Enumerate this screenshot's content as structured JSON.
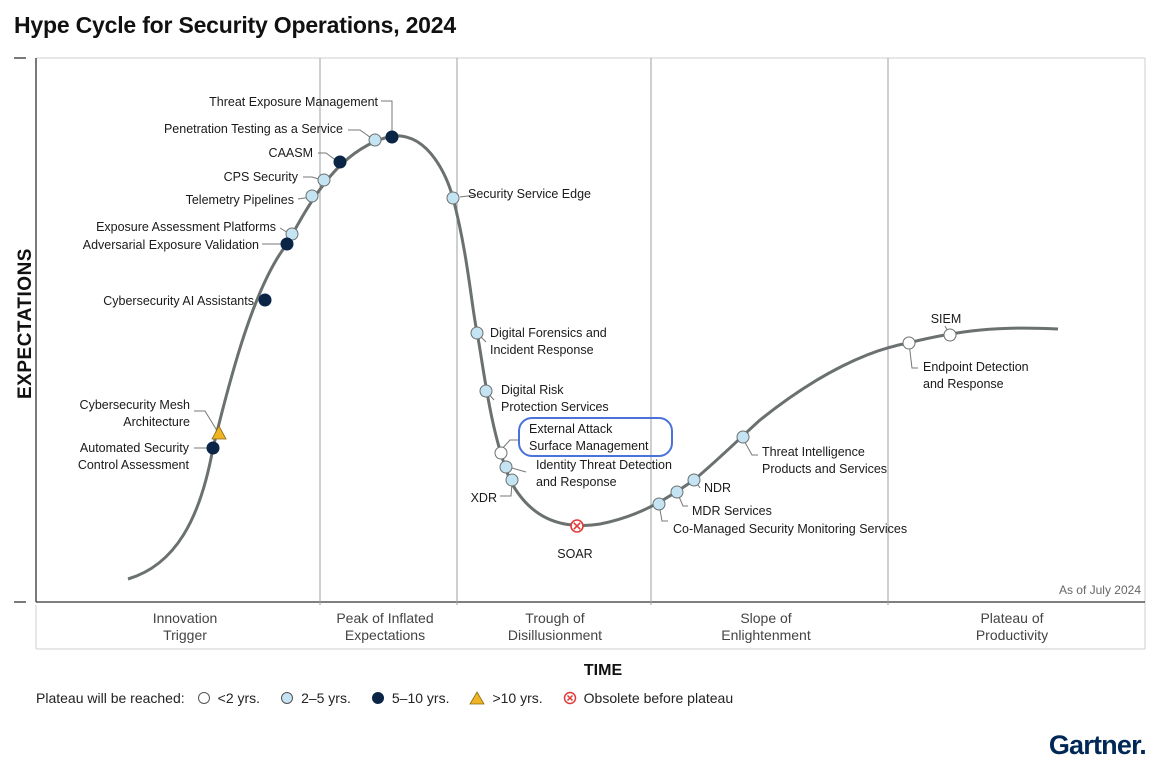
{
  "title": "Hype Cycle for Security Operations, 2024",
  "chart_data": {
    "type": "scatter",
    "title": "Hype Cycle for Security Operations, 2024",
    "ylabel": "EXPECTATIONS",
    "xlabel": "TIME",
    "as_of": "As of July 2024",
    "phases": [
      "Innovation Trigger",
      "Peak of Inflated Expectations",
      "Trough of Disillusionment",
      "Slope of Enlightenment",
      "Plateau of Productivity"
    ],
    "colors": {
      "lt2": "#ffffff",
      "y2to5": "#c5e4f3",
      "y5to10": "#0b2546",
      "gt10": "#f0b323",
      "obsolete": "#e03a3a",
      "curve": "#6b7070",
      "highlight": "#4a72d8"
    },
    "points": [
      {
        "name": "Threat Exposure Management",
        "cat": "y5to10",
        "phase": "Peak of Inflated Expectations"
      },
      {
        "name": "Penetration Testing as a Service",
        "cat": "y2to5",
        "phase": "Peak of Inflated Expectations"
      },
      {
        "name": "CAASM",
        "cat": "y5to10",
        "phase": "Peak of Inflated Expectations"
      },
      {
        "name": "CPS Security",
        "cat": "y2to5",
        "phase": "Peak of Inflated Expectations"
      },
      {
        "name": "Telemetry Pipelines",
        "cat": "y2to5",
        "phase": "Innovation Trigger"
      },
      {
        "name": "Exposure Assessment Platforms",
        "cat": "y2to5",
        "phase": "Innovation Trigger"
      },
      {
        "name": "Adversarial Exposure Validation",
        "cat": "y5to10",
        "phase": "Innovation Trigger"
      },
      {
        "name": "Cybersecurity AI Assistants",
        "cat": "y5to10",
        "phase": "Innovation Trigger"
      },
      {
        "name": "Cybersecurity Mesh Architecture",
        "cat": "gt10",
        "phase": "Innovation Trigger"
      },
      {
        "name": "Automated Security Control Assessment",
        "cat": "y5to10",
        "phase": "Innovation Trigger"
      },
      {
        "name": "Security Service Edge",
        "cat": "y2to5",
        "phase": "Trough of Disillusionment"
      },
      {
        "name": "Digital Forensics and Incident Response",
        "cat": "y2to5",
        "phase": "Trough of Disillusionment"
      },
      {
        "name": "Digital Risk Protection Services",
        "cat": "y2to5",
        "phase": "Trough of Disillusionment"
      },
      {
        "name": "External Attack Surface Management",
        "cat": "lt2",
        "phase": "Trough of Disillusionment",
        "highlighted": true
      },
      {
        "name": "Identity Threat Detection and Response",
        "cat": "y2to5",
        "phase": "Trough of Disillusionment"
      },
      {
        "name": "XDR",
        "cat": "y2to5",
        "phase": "Trough of Disillusionment"
      },
      {
        "name": "SOAR",
        "cat": "obsolete",
        "phase": "Trough of Disillusionment"
      },
      {
        "name": "Co-Managed Security Monitoring Services",
        "cat": "y2to5",
        "phase": "Slope of Enlightenment"
      },
      {
        "name": "MDR Services",
        "cat": "y2to5",
        "phase": "Slope of Enlightenment"
      },
      {
        "name": "NDR",
        "cat": "y2to5",
        "phase": "Slope of Enlightenment"
      },
      {
        "name": "Threat Intelligence Products and Services",
        "cat": "y2to5",
        "phase": "Slope of Enlightenment"
      },
      {
        "name": "Endpoint Detection and Response",
        "cat": "lt2",
        "phase": "Plateau of Productivity"
      },
      {
        "name": "SIEM",
        "cat": "lt2",
        "phase": "Plateau of Productivity"
      }
    ]
  },
  "labels": {
    "tem": "Threat Exposure Management",
    "ptaas": "Penetration Testing as a Service",
    "caasm": "CAASM",
    "cps": "CPS Security",
    "telemetry": "Telemetry Pipelines",
    "eap": "Exposure Assessment Platforms",
    "aev": "Adversarial Exposure Validation",
    "ai": "Cybersecurity AI Assistants",
    "mesh1": "Cybersecurity Mesh",
    "mesh2": "Architecture",
    "asca1": "Automated Security",
    "asca2": "Control Assessment",
    "sse": "Security Service Edge",
    "dfir1": "Digital Forensics and",
    "dfir2": "Incident Response",
    "drps1": "Digital Risk",
    "drps2": "Protection Services",
    "easm1": "External Attack",
    "easm2": "Surface Management",
    "itdr1": "Identity Threat Detection",
    "itdr2": "and Response",
    "xdr": "XDR",
    "soar": "SOAR",
    "cmsms": "Co-Managed Security Monitoring Services",
    "mdr": "MDR Services",
    "ndr": "NDR",
    "ti1": "Threat Intelligence",
    "ti2": "Products and Services",
    "edr1": "Endpoint Detection",
    "edr2": "and Response",
    "siem": "SIEM"
  },
  "phase_labels": {
    "p1a": "Innovation",
    "p1b": "Trigger",
    "p2a": "Peak of Inflated",
    "p2b": "Expectations",
    "p3a": "Trough of",
    "p3b": "Disillusionment",
    "p4a": "Slope of",
    "p4b": "Enlightenment",
    "p5a": "Plateau of",
    "p5b": "Productivity"
  },
  "legend": {
    "title": "Plateau will be reached:",
    "items": [
      "<2 yrs.",
      "2–5 yrs.",
      "5–10 yrs.",
      ">10 yrs.",
      "Obsolete before plateau"
    ]
  },
  "brand": "Gartner."
}
